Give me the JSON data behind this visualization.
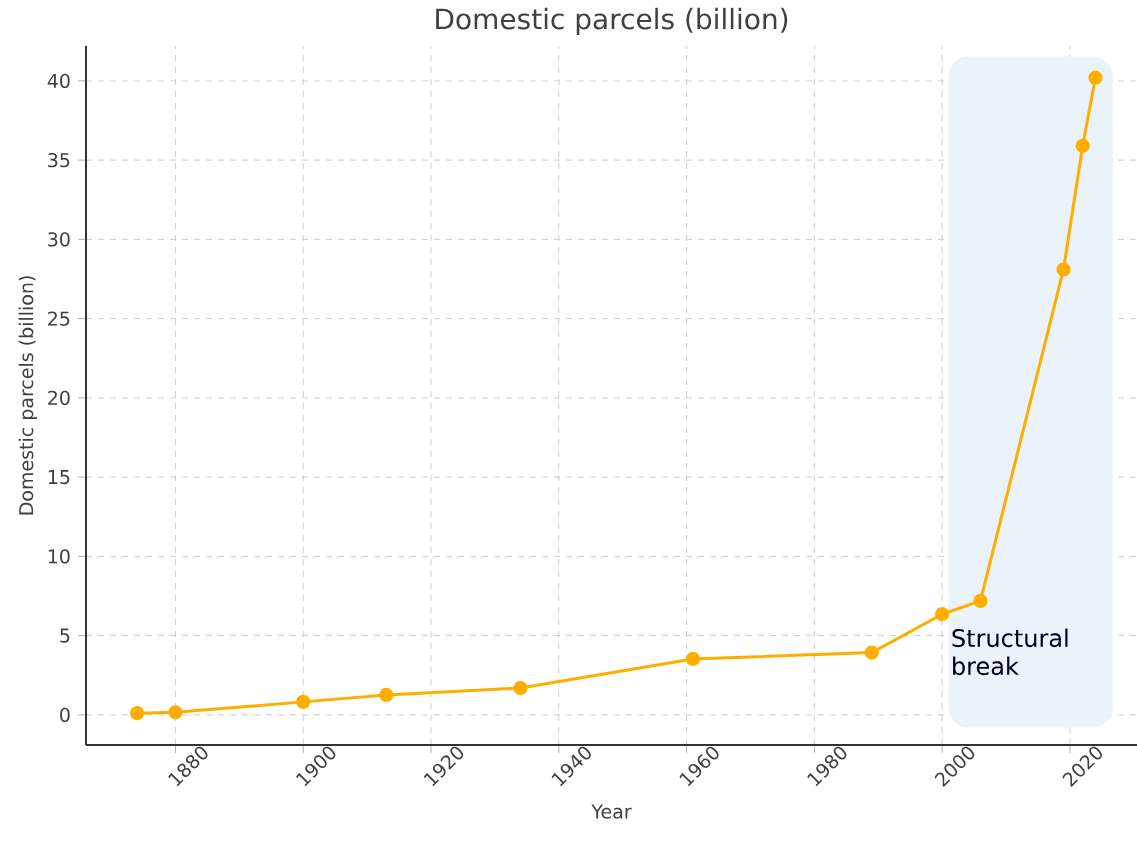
{
  "chart_data": {
    "type": "line",
    "title": "Domestic parcels (billion)",
    "xlabel": "Year",
    "ylabel": "Domestic parcels (billion)",
    "x": [
      1874,
      1880,
      1900,
      1913,
      1934,
      1961,
      1989,
      2000,
      2006,
      2019,
      2022,
      2024
    ],
    "series": [
      {
        "color": "#ffae00",
        "values": [
          0.11,
          0.16,
          0.82,
          1.26,
          1.69,
          3.53,
          3.93,
          6.35,
          7.19,
          28.1,
          35.9,
          40.2
        ]
      }
    ],
    "xlim": [
      1866,
      2030.5
    ],
    "ylim": [
      -1.9,
      42.2
    ],
    "xticks": [
      1880,
      1900,
      1920,
      1940,
      1960,
      1980,
      2000,
      2020
    ],
    "yticks": [
      0,
      5,
      10,
      15,
      20,
      25,
      30,
      35,
      40
    ],
    "bands": [
      {
        "axis": "x",
        "from": 2001,
        "to": 2026.7,
        "label": "Structural break",
        "color": "#eaf2fa"
      }
    ],
    "grid": true,
    "marker": "circle",
    "line_style": "solid"
  }
}
